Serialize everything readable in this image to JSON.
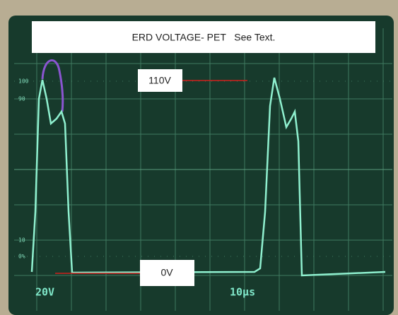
{
  "header": {
    "title": "ERD VOLTAGE- PET   See Text."
  },
  "annotations": {
    "upper": "110V",
    "lower": "0V"
  },
  "scope": {
    "volts_per_div": "20V",
    "time_per_div": "10µs",
    "graticule_labels": [
      "100",
      "90",
      "10",
      "0%"
    ]
  }
}
